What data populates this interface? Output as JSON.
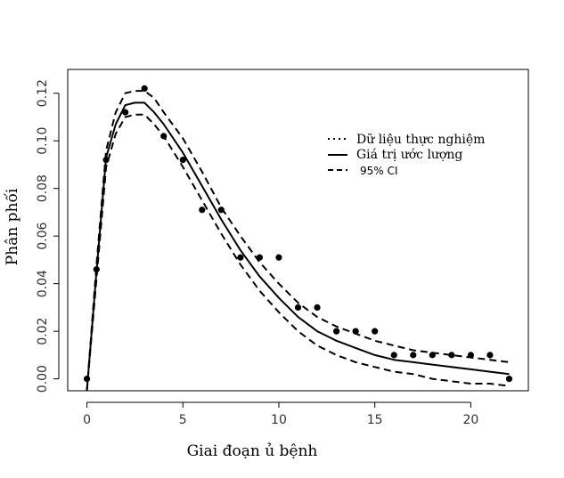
{
  "chart_data": {
    "type": "line",
    "xlabel": "Giai đoạn ủ bệnh",
    "ylabel": "Phân phối",
    "xlim": [
      -1,
      23
    ],
    "ylim": [
      -0.005,
      0.13
    ],
    "x_ticks": [
      0,
      5,
      10,
      15,
      20
    ],
    "x_tick_labels": [
      "0",
      "5",
      "10",
      "15",
      "20"
    ],
    "y_ticks": [
      0.0,
      0.02,
      0.04,
      0.06,
      0.08,
      0.1,
      0.12
    ],
    "y_tick_labels": [
      "0.00",
      "0.02",
      "0.04",
      "0.06",
      "0.08",
      "0.10",
      "0.12"
    ],
    "grid": false,
    "legend_position": "top-right",
    "legend": [
      {
        "label": "Dữ liệu thực nghiệm",
        "style": "dotted"
      },
      {
        "label": "Giá trị ước lượng",
        "style": "solid"
      },
      {
        "label": "95% CI",
        "style": "dashed"
      }
    ],
    "series": [
      {
        "name": "Dữ liệu thực nghiệm",
        "kind": "points",
        "x": [
          0,
          0.5,
          1,
          2,
          3,
          4,
          5,
          6,
          7,
          8,
          9,
          10,
          11,
          12,
          13,
          14,
          15,
          16,
          17,
          18,
          19,
          20,
          21,
          22
        ],
        "y": [
          0.0,
          0.046,
          0.092,
          0.112,
          0.122,
          0.102,
          0.092,
          0.071,
          0.071,
          0.051,
          0.051,
          0.051,
          0.03,
          0.03,
          0.02,
          0.02,
          0.02,
          0.01,
          0.01,
          0.01,
          0.01,
          0.01,
          0.01,
          0.0
        ]
      },
      {
        "name": "Giá trị ước lượng",
        "kind": "solid",
        "x": [
          0,
          0.5,
          1,
          1.5,
          2,
          2.5,
          3,
          3.5,
          4,
          5,
          6,
          7,
          8,
          9,
          10,
          11,
          12,
          13,
          14,
          15,
          16,
          17,
          18,
          19,
          20,
          21,
          22
        ],
        "y": [
          -0.005,
          0.045,
          0.093,
          0.107,
          0.115,
          0.116,
          0.116,
          0.112,
          0.107,
          0.095,
          0.081,
          0.067,
          0.054,
          0.043,
          0.034,
          0.026,
          0.02,
          0.016,
          0.013,
          0.01,
          0.008,
          0.007,
          0.006,
          0.005,
          0.004,
          0.003,
          0.002
        ]
      },
      {
        "name": "95% CI upper",
        "kind": "dashed",
        "x": [
          0,
          0.5,
          1,
          1.5,
          2,
          2.5,
          3,
          3.5,
          4,
          5,
          6,
          7,
          8,
          9,
          10,
          11,
          12,
          13,
          14,
          15,
          16,
          17,
          18,
          19,
          20,
          21,
          22
        ],
        "y": [
          -0.005,
          0.048,
          0.096,
          0.112,
          0.12,
          0.121,
          0.121,
          0.118,
          0.112,
          0.101,
          0.087,
          0.072,
          0.06,
          0.049,
          0.04,
          0.032,
          0.026,
          0.022,
          0.019,
          0.016,
          0.014,
          0.012,
          0.011,
          0.01,
          0.009,
          0.008,
          0.007
        ]
      },
      {
        "name": "95% CI lower",
        "kind": "dashed",
        "x": [
          0,
          0.5,
          1,
          1.5,
          2,
          2.5,
          3,
          3.5,
          4,
          5,
          6,
          7,
          8,
          9,
          10,
          11,
          12,
          13,
          14,
          15,
          16,
          17,
          18,
          19,
          20,
          21,
          22
        ],
        "y": [
          -0.005,
          0.042,
          0.089,
          0.103,
          0.11,
          0.111,
          0.111,
          0.107,
          0.102,
          0.089,
          0.075,
          0.061,
          0.048,
          0.037,
          0.028,
          0.02,
          0.014,
          0.01,
          0.007,
          0.005,
          0.003,
          0.002,
          0.0,
          -0.001,
          -0.002,
          -0.002,
          -0.003
        ]
      }
    ]
  }
}
